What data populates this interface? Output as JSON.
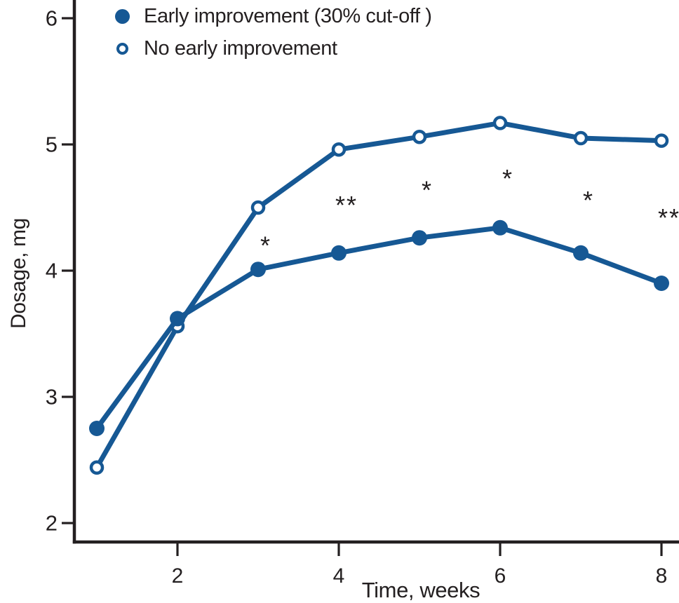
{
  "chart_data": {
    "type": "line",
    "title": "",
    "xlabel": "Time, weeks",
    "ylabel": "Dosage, mg",
    "x": [
      1,
      2,
      3,
      4,
      5,
      6,
      7,
      8
    ],
    "xlim": [
      1,
      8
    ],
    "ylim": [
      2,
      6
    ],
    "x_ticks": [
      "2",
      "4",
      "6",
      "8"
    ],
    "x_tick_values": [
      2,
      4,
      6,
      8
    ],
    "y_ticks": [
      "2",
      "3",
      "4",
      "5",
      "6"
    ],
    "y_tick_values": [
      2,
      3,
      4,
      5,
      6
    ],
    "grid": false,
    "legend_position": "top-left",
    "line_color": "#165894",
    "axis_color": "#231f20",
    "text_color": "#231f20",
    "series": [
      {
        "name": "Early improvement (30% cut-off )",
        "marker": "filled-circle",
        "values": [
          2.75,
          3.62,
          4.01,
          4.14,
          4.26,
          4.34,
          4.14,
          3.9
        ]
      },
      {
        "name": "No early improvement",
        "marker": "open-circle",
        "values": [
          2.44,
          3.56,
          4.5,
          4.96,
          5.06,
          5.17,
          5.05,
          5.03
        ]
      }
    ],
    "annotations": [
      {
        "x": 3,
        "y": 4.23,
        "label": "*"
      },
      {
        "x": 4,
        "y": 4.55,
        "label": "**"
      },
      {
        "x": 5,
        "y": 4.67,
        "label": "*"
      },
      {
        "x": 6,
        "y": 4.76,
        "label": "*"
      },
      {
        "x": 7,
        "y": 4.59,
        "label": "*"
      },
      {
        "x": 8,
        "y": 4.45,
        "label": "**"
      }
    ]
  }
}
